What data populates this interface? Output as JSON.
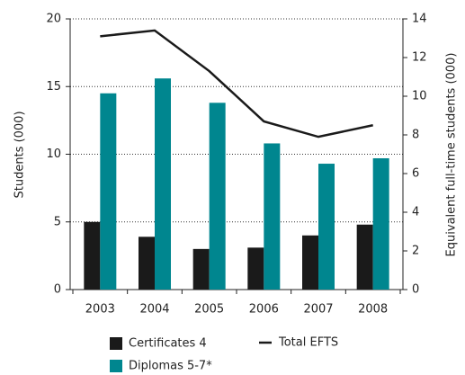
{
  "chart_data": {
    "type": "bar",
    "categories": [
      "2003",
      "2004",
      "2005",
      "2006",
      "2007",
      "2008"
    ],
    "series": [
      {
        "name": "Certificates 4",
        "color": "#1a1a1a",
        "values": [
          5.0,
          3.9,
          3.0,
          3.1,
          4.0,
          4.8
        ]
      },
      {
        "name": "Diplomas 5-7*",
        "color": "#00868f",
        "values": [
          14.5,
          15.6,
          13.8,
          10.8,
          9.3,
          9.7
        ]
      },
      {
        "name": "Total EFTS",
        "color": "#1a1a1a",
        "type": "line",
        "axis": "y2",
        "values": [
          13.1,
          13.4,
          11.3,
          8.7,
          7.9,
          8.5
        ]
      }
    ],
    "ylabel": "Students (000)",
    "y2label": "Equivalent full-time students (000)",
    "ylim": [
      0,
      20
    ],
    "yticks": [
      0,
      5,
      10,
      15,
      20
    ],
    "y2lim": [
      0,
      14
    ],
    "y2ticks": [
      0,
      2,
      4,
      6,
      8,
      10,
      12,
      14
    ],
    "grid": true,
    "legend": "bottom"
  }
}
